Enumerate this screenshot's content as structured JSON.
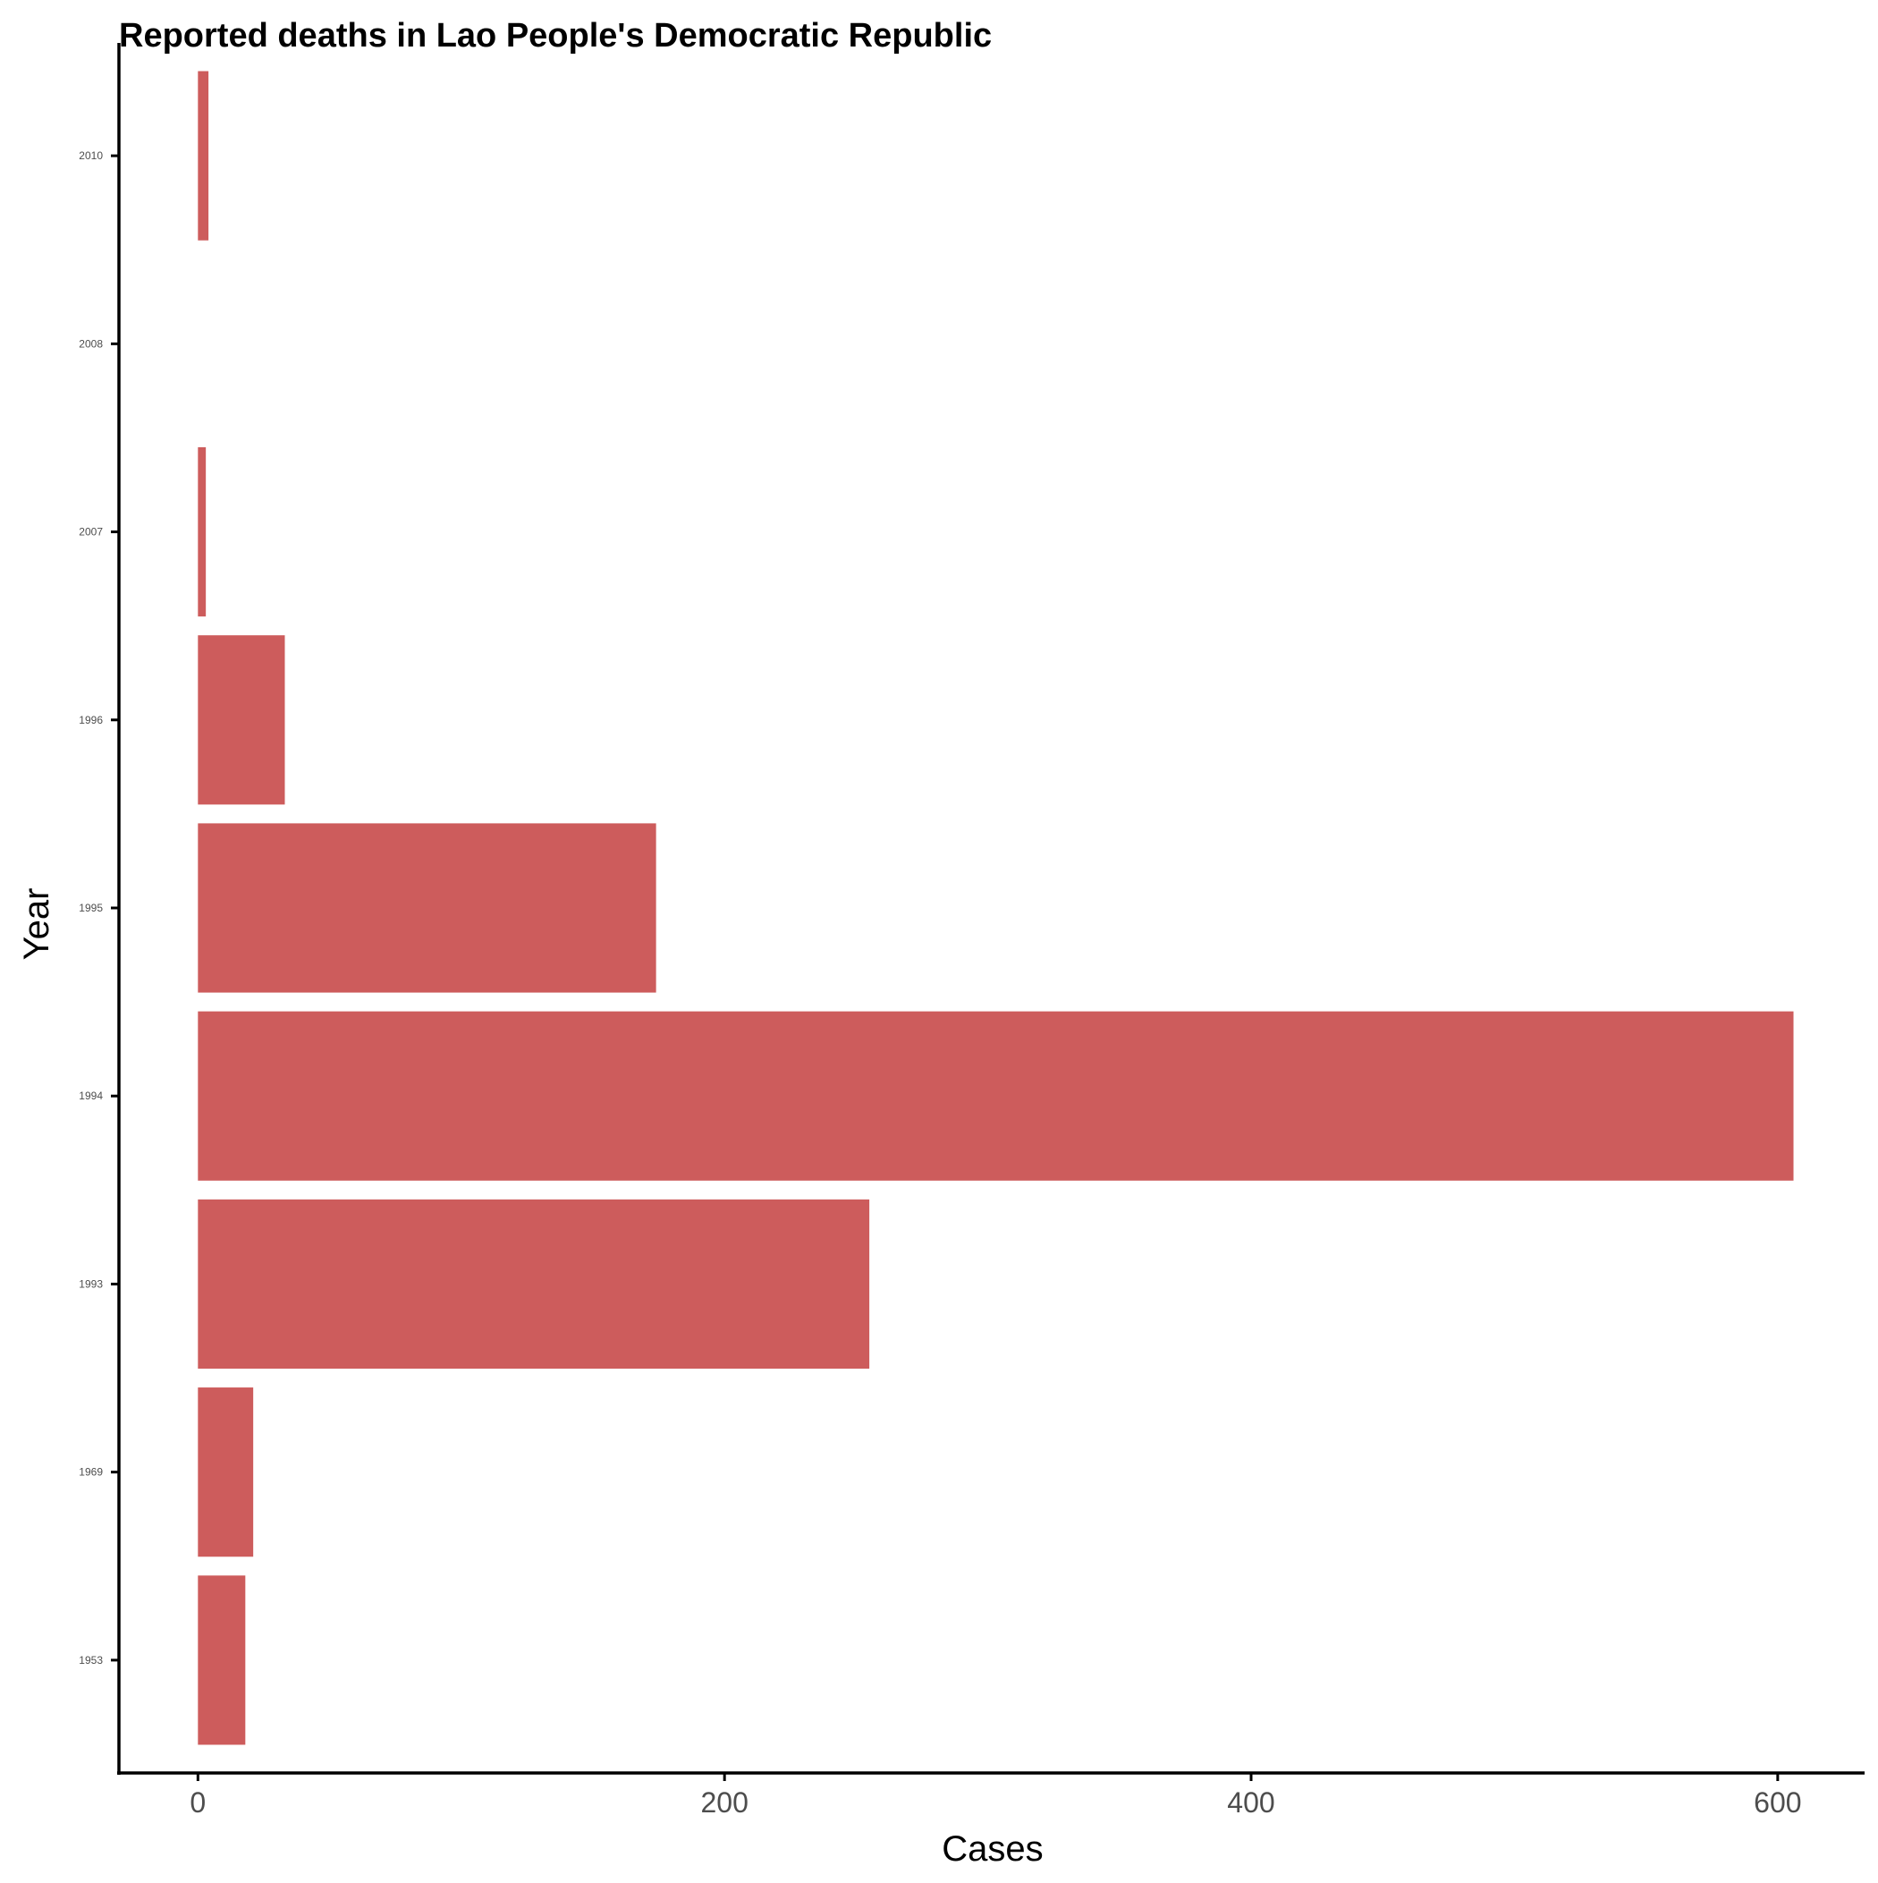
{
  "chart_data": {
    "type": "bar",
    "orientation": "horizontal",
    "title": "Reported deaths in Lao People's Democratic Republic",
    "xlabel": "Cases",
    "ylabel": "Year",
    "categories": [
      "1953",
      "1969",
      "1993",
      "1994",
      "1995",
      "1996",
      "2007",
      "2008",
      "2010"
    ],
    "values": [
      18,
      21,
      255,
      606,
      174,
      33,
      3,
      0,
      4
    ],
    "xlim": [
      -30,
      633
    ],
    "xticks": [
      0,
      200,
      400,
      600
    ],
    "bar_color": "#cd5c5c",
    "grid": false,
    "legend": "none"
  }
}
